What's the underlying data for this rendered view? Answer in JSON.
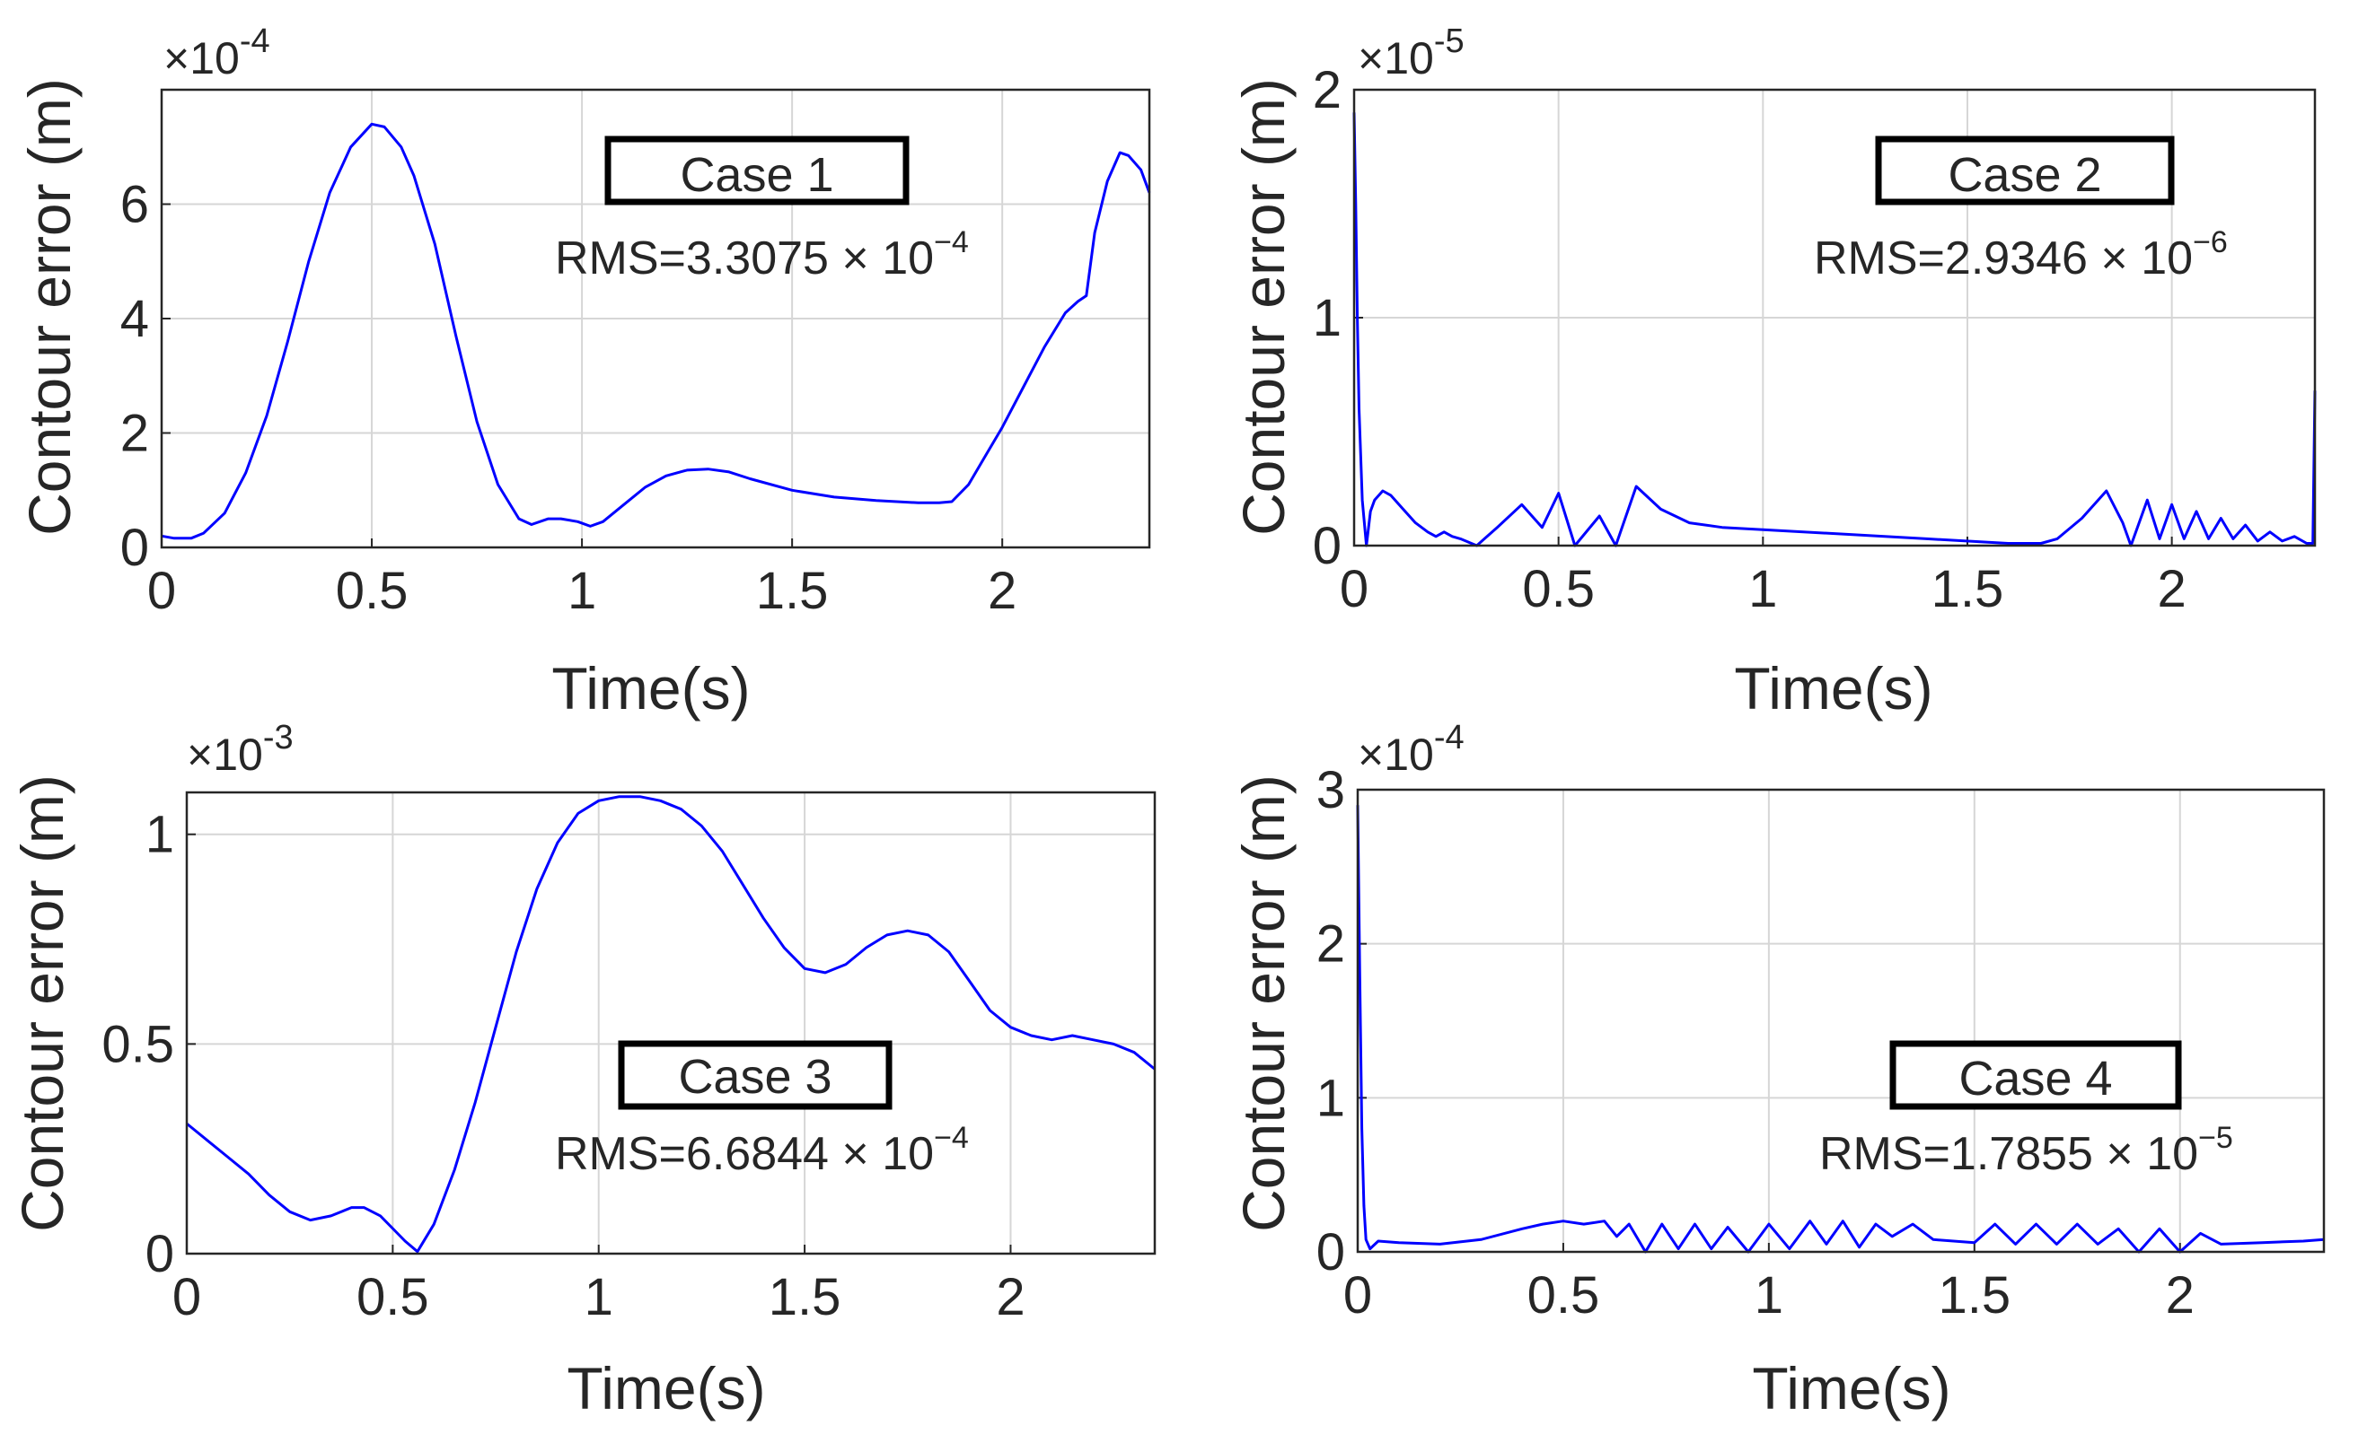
{
  "chart_data": [
    {
      "type": "line",
      "id": "case1",
      "xlabel": "Time(s)",
      "ylabel": "Contour error (m)",
      "exponent_label": "×10",
      "exponent_power": "-4",
      "xlim": [
        0,
        2.35
      ],
      "ylim": [
        0,
        8
      ],
      "xticks": [
        0,
        0.5,
        1,
        1.5,
        2
      ],
      "xtick_labels": [
        "0",
        "0.5",
        "1",
        "1.5",
        "2"
      ],
      "yticks": [
        0,
        2,
        4,
        6
      ],
      "ytick_labels": [
        "0",
        "2",
        "4",
        "6"
      ],
      "grid": true,
      "annotation": {
        "case_label": "Case 1",
        "rms_text": "RMS=3.3075 × 10",
        "rms_power": "−4"
      },
      "series": [
        {
          "name": "Contour error",
          "color": "#0000ff",
          "x": [
            0,
            0.03,
            0.07,
            0.1,
            0.15,
            0.2,
            0.25,
            0.3,
            0.35,
            0.4,
            0.45,
            0.5,
            0.53,
            0.57,
            0.6,
            0.65,
            0.7,
            0.75,
            0.8,
            0.85,
            0.88,
            0.92,
            0.95,
            0.99,
            1.02,
            1.05,
            1.1,
            1.15,
            1.2,
            1.25,
            1.3,
            1.35,
            1.4,
            1.5,
            1.6,
            1.7,
            1.8,
            1.85,
            1.88,
            1.92,
            1.96,
            2.0,
            2.05,
            2.1,
            2.15,
            2.18,
            2.2,
            2.22,
            2.25,
            2.28,
            2.3,
            2.33,
            2.35
          ],
          "y": [
            0.2,
            0.16,
            0.16,
            0.25,
            0.6,
            1.3,
            2.3,
            3.6,
            5.0,
            6.2,
            7.0,
            7.4,
            7.35,
            7.0,
            6.5,
            5.3,
            3.7,
            2.2,
            1.1,
            0.5,
            0.4,
            0.5,
            0.5,
            0.45,
            0.37,
            0.45,
            0.75,
            1.05,
            1.25,
            1.35,
            1.37,
            1.32,
            1.2,
            1.0,
            0.88,
            0.82,
            0.78,
            0.78,
            0.8,
            1.1,
            1.6,
            2.1,
            2.8,
            3.5,
            4.1,
            4.3,
            4.4,
            5.5,
            6.4,
            6.9,
            6.85,
            6.6,
            6.2
          ]
        }
      ]
    },
    {
      "type": "line",
      "id": "case2",
      "xlabel": "Time(s)",
      "ylabel": "Contour error (m)",
      "exponent_label": "×10",
      "exponent_power": "-5",
      "xlim": [
        0,
        2.35
      ],
      "ylim": [
        0,
        2
      ],
      "xticks": [
        0,
        0.5,
        1,
        1.5,
        2
      ],
      "xtick_labels": [
        "0",
        "0.5",
        "1",
        "1.5",
        "2"
      ],
      "yticks": [
        0,
        1,
        2
      ],
      "ytick_labels": [
        "0",
        "1",
        "2"
      ],
      "grid": true,
      "annotation": {
        "case_label": "Case 2",
        "rms_text": "RMS=2.9346 × 10",
        "rms_power": "−6"
      },
      "series": [
        {
          "name": "Contour error",
          "color": "#0000ff",
          "x": [
            0,
            0.004,
            0.008,
            0.012,
            0.02,
            0.03,
            0.04,
            0.05,
            0.07,
            0.09,
            0.12,
            0.15,
            0.18,
            0.2,
            0.22,
            0.24,
            0.26,
            0.3,
            0.35,
            0.41,
            0.46,
            0.5,
            0.54,
            0.6,
            0.64,
            0.69,
            0.75,
            0.82,
            0.9,
            1.0,
            1.2,
            1.4,
            1.6,
            1.68,
            1.72,
            1.78,
            1.84,
            1.88,
            1.9,
            1.94,
            1.97,
            2.0,
            2.03,
            2.06,
            2.09,
            2.12,
            2.15,
            2.18,
            2.21,
            2.24,
            2.27,
            2.3,
            2.33,
            2.345,
            2.35
          ],
          "y": [
            1.9,
            1.5,
            1.0,
            0.6,
            0.2,
            0.0,
            0.15,
            0.2,
            0.24,
            0.22,
            0.16,
            0.1,
            0.06,
            0.04,
            0.06,
            0.04,
            0.03,
            0.0,
            0.08,
            0.18,
            0.08,
            0.23,
            0.0,
            0.13,
            0.0,
            0.26,
            0.16,
            0.1,
            0.08,
            0.07,
            0.05,
            0.03,
            0.01,
            0.01,
            0.03,
            0.12,
            0.24,
            0.1,
            0.0,
            0.2,
            0.03,
            0.18,
            0.03,
            0.15,
            0.03,
            0.12,
            0.03,
            0.09,
            0.02,
            0.06,
            0.02,
            0.04,
            0.01,
            0.01,
            0.68
          ]
        }
      ]
    },
    {
      "type": "line",
      "id": "case3",
      "xlabel": "Time(s)",
      "ylabel": "Contour error (m)",
      "exponent_label": "×10",
      "exponent_power": "-3",
      "xlim": [
        0,
        2.35
      ],
      "ylim": [
        0,
        1.1
      ],
      "xticks": [
        0,
        0.5,
        1,
        1.5,
        2
      ],
      "xtick_labels": [
        "0",
        "0.5",
        "1",
        "1.5",
        "2"
      ],
      "yticks": [
        0,
        0.5,
        1
      ],
      "ytick_labels": [
        "0",
        "0.5",
        "1"
      ],
      "grid": true,
      "annotation": {
        "case_label": "Case 3",
        "rms_text": "RMS=6.6844 × 10",
        "rms_power": "−4"
      },
      "series": [
        {
          "name": "Contour error",
          "color": "#0000ff",
          "x": [
            0,
            0.05,
            0.1,
            0.15,
            0.2,
            0.25,
            0.3,
            0.35,
            0.4,
            0.43,
            0.47,
            0.5,
            0.53,
            0.56,
            0.6,
            0.65,
            0.7,
            0.75,
            0.8,
            0.85,
            0.9,
            0.95,
            1.0,
            1.05,
            1.1,
            1.15,
            1.2,
            1.25,
            1.3,
            1.35,
            1.4,
            1.45,
            1.5,
            1.55,
            1.6,
            1.65,
            1.7,
            1.75,
            1.8,
            1.85,
            1.9,
            1.95,
            2.0,
            2.05,
            2.1,
            2.15,
            2.2,
            2.25,
            2.3,
            2.35
          ],
          "y": [
            0.31,
            0.27,
            0.23,
            0.19,
            0.14,
            0.1,
            0.08,
            0.09,
            0.11,
            0.11,
            0.09,
            0.06,
            0.03,
            0.005,
            0.07,
            0.2,
            0.36,
            0.54,
            0.72,
            0.87,
            0.98,
            1.05,
            1.08,
            1.09,
            1.09,
            1.08,
            1.06,
            1.02,
            0.96,
            0.88,
            0.8,
            0.73,
            0.68,
            0.67,
            0.69,
            0.73,
            0.76,
            0.77,
            0.76,
            0.72,
            0.65,
            0.58,
            0.54,
            0.52,
            0.51,
            0.52,
            0.51,
            0.5,
            0.48,
            0.44
          ]
        }
      ]
    },
    {
      "type": "line",
      "id": "case4",
      "xlabel": "Time(s)",
      "ylabel": "Contour error (m)",
      "exponent_label": "×10",
      "exponent_power": "-4",
      "xlim": [
        0,
        2.35
      ],
      "ylim": [
        0,
        3
      ],
      "xticks": [
        0,
        0.5,
        1,
        1.5,
        2
      ],
      "xtick_labels": [
        "0",
        "0.5",
        "1",
        "1.5",
        "2"
      ],
      "yticks": [
        0,
        1,
        2,
        3
      ],
      "ytick_labels": [
        "0",
        "1",
        "2",
        "3"
      ],
      "grid": true,
      "annotation": {
        "case_label": "Case 4",
        "rms_text": "RMS=1.7855 × 10",
        "rms_power": "−5"
      },
      "series": [
        {
          "name": "Contour error",
          "color": "#0000ff",
          "x": [
            0,
            0.005,
            0.01,
            0.015,
            0.02,
            0.03,
            0.05,
            0.1,
            0.2,
            0.3,
            0.4,
            0.45,
            0.5,
            0.55,
            0.6,
            0.63,
            0.66,
            0.7,
            0.74,
            0.78,
            0.82,
            0.86,
            0.9,
            0.95,
            1.0,
            1.05,
            1.1,
            1.14,
            1.18,
            1.22,
            1.26,
            1.3,
            1.35,
            1.4,
            1.5,
            1.55,
            1.6,
            1.65,
            1.7,
            1.75,
            1.8,
            1.85,
            1.9,
            1.95,
            2.0,
            2.05,
            2.1,
            2.2,
            2.3,
            2.35
          ],
          "y": [
            2.9,
            1.8,
            0.8,
            0.3,
            0.08,
            0.02,
            0.07,
            0.06,
            0.05,
            0.08,
            0.15,
            0.18,
            0.2,
            0.18,
            0.2,
            0.1,
            0.18,
            0.0,
            0.18,
            0.02,
            0.18,
            0.02,
            0.16,
            0.0,
            0.18,
            0.02,
            0.2,
            0.05,
            0.2,
            0.03,
            0.18,
            0.1,
            0.18,
            0.08,
            0.06,
            0.18,
            0.05,
            0.18,
            0.05,
            0.18,
            0.05,
            0.15,
            0.0,
            0.15,
            0.0,
            0.12,
            0.05,
            0.06,
            0.07,
            0.08
          ]
        }
      ]
    }
  ]
}
